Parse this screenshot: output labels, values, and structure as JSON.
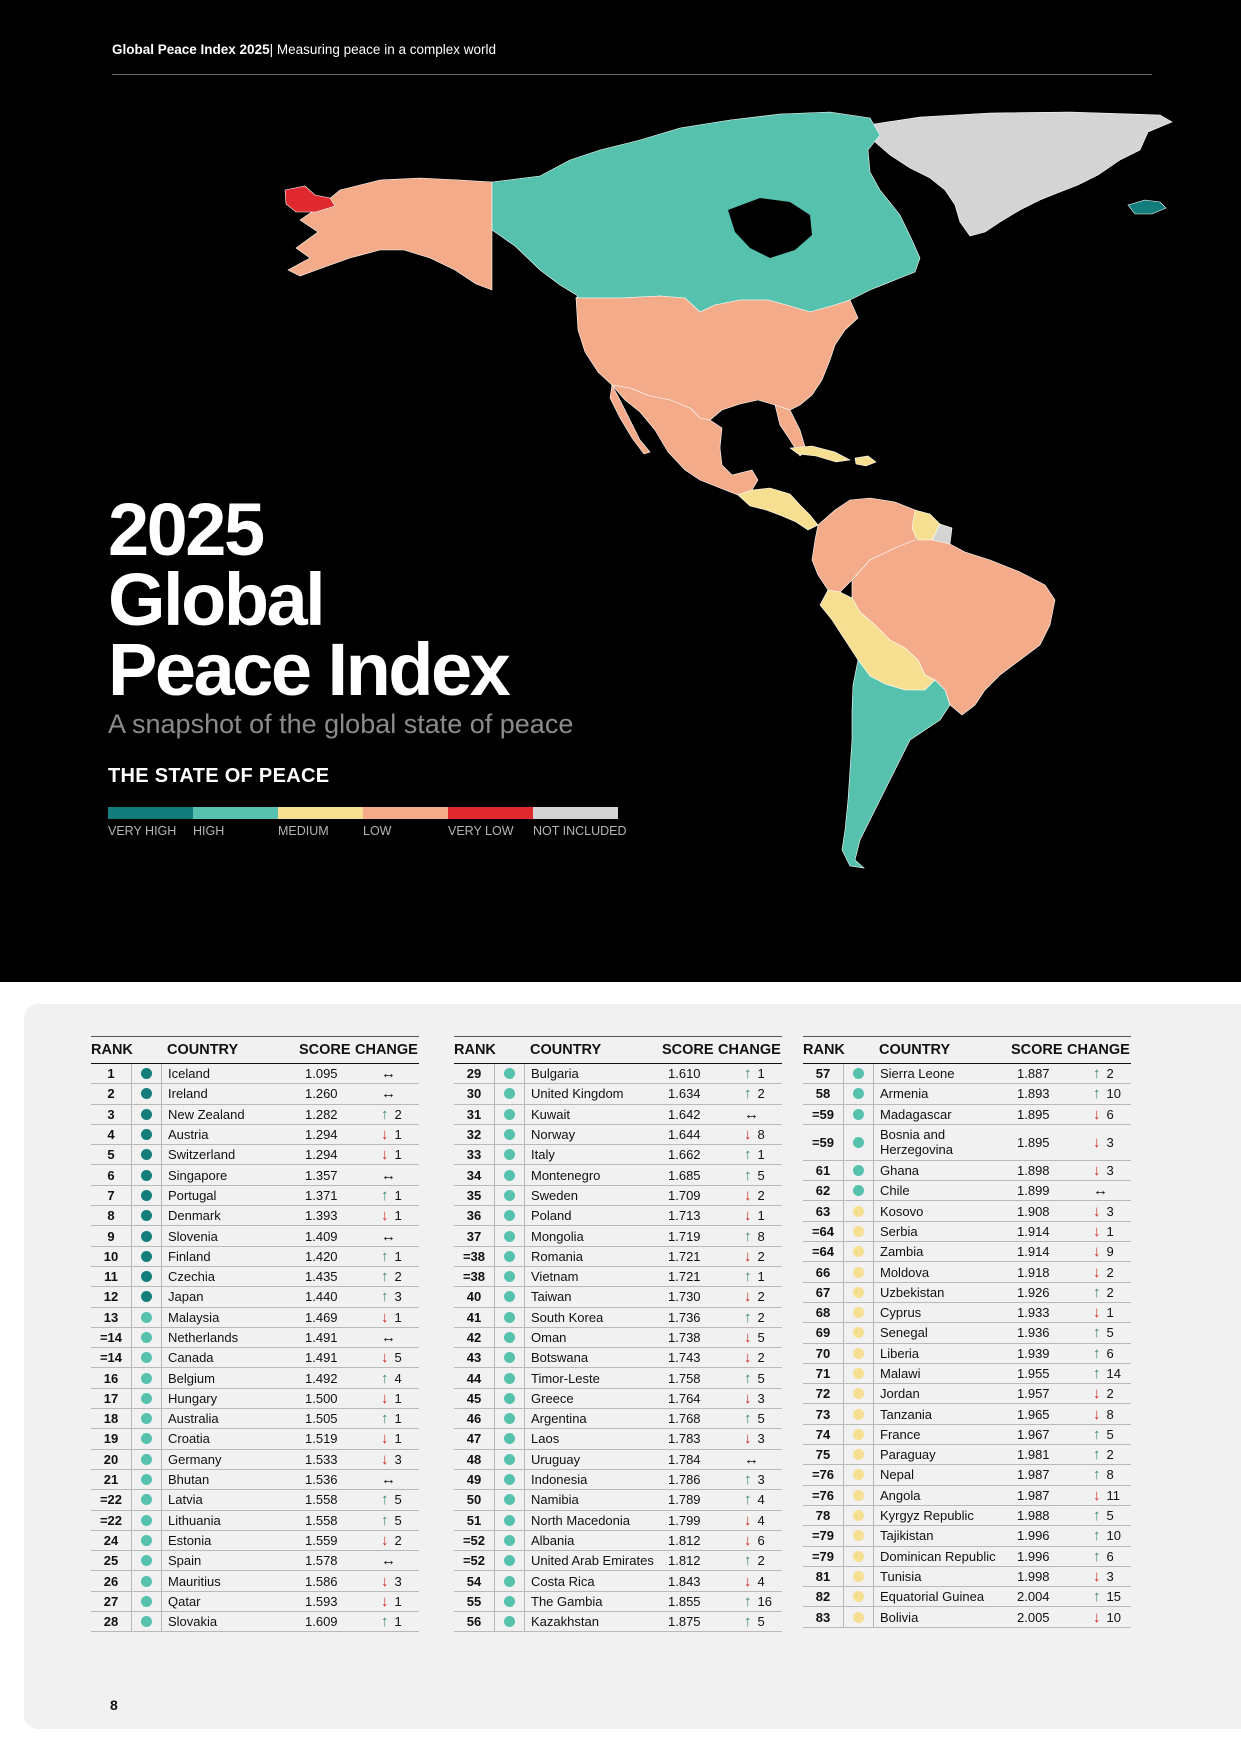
{
  "header": {
    "report": "Global Peace Index 2025",
    "separator": "|",
    "tagline": "Measuring peace in a complex world"
  },
  "title_lines": [
    "2025",
    "Global",
    "Peace Index"
  ],
  "subtitle": "A snapshot of the global state of peace",
  "legend": {
    "heading": "THE STATE OF PEACE",
    "items": [
      {
        "label": "VERY HIGH",
        "color": "#127d7b"
      },
      {
        "label": "HIGH",
        "color": "#56c2ad"
      },
      {
        "label": "MEDIUM",
        "color": "#f7df92"
      },
      {
        "label": "LOW",
        "color": "#f4ab89"
      },
      {
        "label": "VERY LOW",
        "color": "#e02a2f"
      },
      {
        "label": "NOT INCLUDED",
        "color": "#d4d4d4"
      }
    ]
  },
  "table_headers": {
    "rank": "RANK",
    "country": "COUNTRY",
    "score": "SCORE",
    "change": "CHANGE"
  },
  "columns": [
    [
      {
        "rank": "1",
        "country": "Iceland",
        "score": "1.095",
        "dir": "same",
        "change": "",
        "level": "very_high"
      },
      {
        "rank": "2",
        "country": "Ireland",
        "score": "1.260",
        "dir": "same",
        "change": "",
        "level": "very_high"
      },
      {
        "rank": "3",
        "country": "New Zealand",
        "score": "1.282",
        "dir": "up",
        "change": "2",
        "level": "very_high"
      },
      {
        "rank": "4",
        "country": "Austria",
        "score": "1.294",
        "dir": "down",
        "change": "1",
        "level": "very_high"
      },
      {
        "rank": "5",
        "country": "Switzerland",
        "score": "1.294",
        "dir": "down",
        "change": "1",
        "level": "very_high"
      },
      {
        "rank": "6",
        "country": "Singapore",
        "score": "1.357",
        "dir": "same",
        "change": "",
        "level": "very_high"
      },
      {
        "rank": "7",
        "country": "Portugal",
        "score": "1.371",
        "dir": "up",
        "change": "1",
        "level": "very_high"
      },
      {
        "rank": "8",
        "country": "Denmark",
        "score": "1.393",
        "dir": "down",
        "change": "1",
        "level": "very_high"
      },
      {
        "rank": "9",
        "country": "Slovenia",
        "score": "1.409",
        "dir": "same",
        "change": "",
        "level": "very_high"
      },
      {
        "rank": "10",
        "country": "Finland",
        "score": "1.420",
        "dir": "up",
        "change": "1",
        "level": "very_high"
      },
      {
        "rank": "11",
        "country": "Czechia",
        "score": "1.435",
        "dir": "up",
        "change": "2",
        "level": "very_high"
      },
      {
        "rank": "12",
        "country": "Japan",
        "score": "1.440",
        "dir": "up",
        "change": "3",
        "level": "very_high"
      },
      {
        "rank": "13",
        "country": "Malaysia",
        "score": "1.469",
        "dir": "down",
        "change": "1",
        "level": "high"
      },
      {
        "rank": "=14",
        "country": "Netherlands",
        "score": "1.491",
        "dir": "same",
        "change": "",
        "level": "high"
      },
      {
        "rank": "=14",
        "country": "Canada",
        "score": "1.491",
        "dir": "down",
        "change": "5",
        "level": "high"
      },
      {
        "rank": "16",
        "country": "Belgium",
        "score": "1.492",
        "dir": "up",
        "change": "4",
        "level": "high"
      },
      {
        "rank": "17",
        "country": "Hungary",
        "score": "1.500",
        "dir": "down",
        "change": "1",
        "level": "high"
      },
      {
        "rank": "18",
        "country": "Australia",
        "score": "1.505",
        "dir": "up",
        "change": "1",
        "level": "high"
      },
      {
        "rank": "19",
        "country": "Croatia",
        "score": "1.519",
        "dir": "down",
        "change": "1",
        "level": "high"
      },
      {
        "rank": "20",
        "country": "Germany",
        "score": "1.533",
        "dir": "down",
        "change": "3",
        "level": "high"
      },
      {
        "rank": "21",
        "country": "Bhutan",
        "score": "1.536",
        "dir": "same",
        "change": "",
        "level": "high"
      },
      {
        "rank": "=22",
        "country": "Latvia",
        "score": "1.558",
        "dir": "up",
        "change": "5",
        "level": "high"
      },
      {
        "rank": "=22",
        "country": "Lithuania",
        "score": "1.558",
        "dir": "up",
        "change": "5",
        "level": "high"
      },
      {
        "rank": "24",
        "country": "Estonia",
        "score": "1.559",
        "dir": "down",
        "change": "2",
        "level": "high"
      },
      {
        "rank": "25",
        "country": "Spain",
        "score": "1.578",
        "dir": "same",
        "change": "",
        "level": "high"
      },
      {
        "rank": "26",
        "country": "Mauritius",
        "score": "1.586",
        "dir": "down",
        "change": "3",
        "level": "high"
      },
      {
        "rank": "27",
        "country": "Qatar",
        "score": "1.593",
        "dir": "down",
        "change": "1",
        "level": "high"
      },
      {
        "rank": "28",
        "country": "Slovakia",
        "score": "1.609",
        "dir": "up",
        "change": "1",
        "level": "high"
      }
    ],
    [
      {
        "rank": "29",
        "country": "Bulgaria",
        "score": "1.610",
        "dir": "up",
        "change": "1",
        "level": "high"
      },
      {
        "rank": "30",
        "country": "United Kingdom",
        "score": "1.634",
        "dir": "up",
        "change": "2",
        "level": "high"
      },
      {
        "rank": "31",
        "country": "Kuwait",
        "score": "1.642",
        "dir": "same",
        "change": "",
        "level": "high"
      },
      {
        "rank": "32",
        "country": "Norway",
        "score": "1.644",
        "dir": "down",
        "change": "8",
        "level": "high"
      },
      {
        "rank": "33",
        "country": "Italy",
        "score": "1.662",
        "dir": "up",
        "change": "1",
        "level": "high"
      },
      {
        "rank": "34",
        "country": "Montenegro",
        "score": "1.685",
        "dir": "up",
        "change": "5",
        "level": "high"
      },
      {
        "rank": "35",
        "country": "Sweden",
        "score": "1.709",
        "dir": "down",
        "change": "2",
        "level": "high"
      },
      {
        "rank": "36",
        "country": "Poland",
        "score": "1.713",
        "dir": "down",
        "change": "1",
        "level": "high"
      },
      {
        "rank": "37",
        "country": "Mongolia",
        "score": "1.719",
        "dir": "up",
        "change": "8",
        "level": "high"
      },
      {
        "rank": "=38",
        "country": "Romania",
        "score": "1.721",
        "dir": "down",
        "change": "2",
        "level": "high"
      },
      {
        "rank": "=38",
        "country": "Vietnam",
        "score": "1.721",
        "dir": "up",
        "change": "1",
        "level": "high"
      },
      {
        "rank": "40",
        "country": "Taiwan",
        "score": "1.730",
        "dir": "down",
        "change": "2",
        "level": "high"
      },
      {
        "rank": "41",
        "country": "South Korea",
        "score": "1.736",
        "dir": "up",
        "change": "2",
        "level": "high"
      },
      {
        "rank": "42",
        "country": "Oman",
        "score": "1.738",
        "dir": "down",
        "change": "5",
        "level": "high"
      },
      {
        "rank": "43",
        "country": "Botswana",
        "score": "1.743",
        "dir": "down",
        "change": "2",
        "level": "high"
      },
      {
        "rank": "44",
        "country": "Timor-Leste",
        "score": "1.758",
        "dir": "up",
        "change": "5",
        "level": "high"
      },
      {
        "rank": "45",
        "country": "Greece",
        "score": "1.764",
        "dir": "down",
        "change": "3",
        "level": "high"
      },
      {
        "rank": "46",
        "country": "Argentina",
        "score": "1.768",
        "dir": "up",
        "change": "5",
        "level": "high"
      },
      {
        "rank": "47",
        "country": "Laos",
        "score": "1.783",
        "dir": "down",
        "change": "3",
        "level": "high"
      },
      {
        "rank": "48",
        "country": "Uruguay",
        "score": "1.784",
        "dir": "same",
        "change": "",
        "level": "high"
      },
      {
        "rank": "49",
        "country": "Indonesia",
        "score": "1.786",
        "dir": "up",
        "change": "3",
        "level": "high"
      },
      {
        "rank": "50",
        "country": "Namibia",
        "score": "1.789",
        "dir": "up",
        "change": "4",
        "level": "high"
      },
      {
        "rank": "51",
        "country": "North Macedonia",
        "score": "1.799",
        "dir": "down",
        "change": "4",
        "level": "high"
      },
      {
        "rank": "=52",
        "country": "Albania",
        "score": "1.812",
        "dir": "down",
        "change": "6",
        "level": "high"
      },
      {
        "rank": "=52",
        "country": "United Arab Emirates",
        "score": "1.812",
        "dir": "up",
        "change": "2",
        "level": "high"
      },
      {
        "rank": "54",
        "country": "Costa Rica",
        "score": "1.843",
        "dir": "down",
        "change": "4",
        "level": "high"
      },
      {
        "rank": "55",
        "country": "The Gambia",
        "score": "1.855",
        "dir": "up",
        "change": "16",
        "level": "high"
      },
      {
        "rank": "56",
        "country": "Kazakhstan",
        "score": "1.875",
        "dir": "up",
        "change": "5",
        "level": "high"
      }
    ],
    [
      {
        "rank": "57",
        "country": "Sierra Leone",
        "score": "1.887",
        "dir": "up",
        "change": "2",
        "level": "high"
      },
      {
        "rank": "58",
        "country": "Armenia",
        "score": "1.893",
        "dir": "up",
        "change": "10",
        "level": "high"
      },
      {
        "rank": "=59",
        "country": "Madagascar",
        "score": "1.895",
        "dir": "down",
        "change": "6",
        "level": "high"
      },
      {
        "rank": "=59",
        "country": "Bosnia and Herzegovina",
        "score": "1.895",
        "dir": "down",
        "change": "3",
        "level": "high",
        "tall": true
      },
      {
        "rank": "61",
        "country": "Ghana",
        "score": "1.898",
        "dir": "down",
        "change": "3",
        "level": "high"
      },
      {
        "rank": "62",
        "country": "Chile",
        "score": "1.899",
        "dir": "same",
        "change": "",
        "level": "high"
      },
      {
        "rank": "63",
        "country": "Kosovo",
        "score": "1.908",
        "dir": "down",
        "change": "3",
        "level": "medium"
      },
      {
        "rank": "=64",
        "country": "Serbia",
        "score": "1.914",
        "dir": "down",
        "change": "1",
        "level": "medium"
      },
      {
        "rank": "=64",
        "country": "Zambia",
        "score": "1.914",
        "dir": "down",
        "change": "9",
        "level": "medium"
      },
      {
        "rank": "66",
        "country": "Moldova",
        "score": "1.918",
        "dir": "down",
        "change": "2",
        "level": "medium"
      },
      {
        "rank": "67",
        "country": "Uzbekistan",
        "score": "1.926",
        "dir": "up",
        "change": "2",
        "level": "medium"
      },
      {
        "rank": "68",
        "country": "Cyprus",
        "score": "1.933",
        "dir": "down",
        "change": "1",
        "level": "medium"
      },
      {
        "rank": "69",
        "country": "Senegal",
        "score": "1.936",
        "dir": "up",
        "change": "5",
        "level": "medium"
      },
      {
        "rank": "70",
        "country": "Liberia",
        "score": "1.939",
        "dir": "up",
        "change": "6",
        "level": "medium"
      },
      {
        "rank": "71",
        "country": "Malawi",
        "score": "1.955",
        "dir": "up",
        "change": "14",
        "level": "medium"
      },
      {
        "rank": "72",
        "country": "Jordan",
        "score": "1.957",
        "dir": "down",
        "change": "2",
        "level": "medium"
      },
      {
        "rank": "73",
        "country": "Tanzania",
        "score": "1.965",
        "dir": "down",
        "change": "8",
        "level": "medium"
      },
      {
        "rank": "74",
        "country": "France",
        "score": "1.967",
        "dir": "up",
        "change": "5",
        "level": "medium"
      },
      {
        "rank": "75",
        "country": "Paraguay",
        "score": "1.981",
        "dir": "up",
        "change": "2",
        "level": "medium"
      },
      {
        "rank": "=76",
        "country": "Nepal",
        "score": "1.987",
        "dir": "up",
        "change": "8",
        "level": "medium"
      },
      {
        "rank": "=76",
        "country": "Angola",
        "score": "1.987",
        "dir": "down",
        "change": "11",
        "level": "medium"
      },
      {
        "rank": "78",
        "country": "Kyrgyz Republic",
        "score": "1.988",
        "dir": "up",
        "change": "5",
        "level": "medium"
      },
      {
        "rank": "=79",
        "country": "Tajikistan",
        "score": "1.996",
        "dir": "up",
        "change": "10",
        "level": "medium"
      },
      {
        "rank": "=79",
        "country": "Dominican Republic",
        "score": "1.996",
        "dir": "up",
        "change": "6",
        "level": "medium"
      },
      {
        "rank": "81",
        "country": "Tunisia",
        "score": "1.998",
        "dir": "down",
        "change": "3",
        "level": "medium"
      },
      {
        "rank": "82",
        "country": "Equatorial Guinea",
        "score": "2.004",
        "dir": "up",
        "change": "15",
        "level": "medium"
      },
      {
        "rank": "83",
        "country": "Bolivia",
        "score": "2.005",
        "dir": "down",
        "change": "10",
        "level": "medium"
      }
    ]
  ],
  "arrow_glyphs": {
    "up": "↑",
    "down": "↓",
    "same": "↔"
  },
  "level_colors": {
    "very_high": "#127d7b",
    "high": "#56c2ad",
    "medium": "#f7df92"
  },
  "page_number": "8"
}
